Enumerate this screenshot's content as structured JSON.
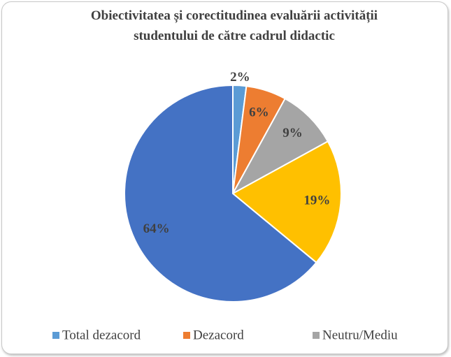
{
  "chart_data": {
    "type": "pie",
    "title": "Obiectivitatea și corectitudinea evaluării activității studentului de către cadrul didactic",
    "categories": [
      "Total dezacord",
      "Dezacord",
      "Neutru/Mediu",
      null,
      null
    ],
    "values": [
      2,
      6,
      9,
      19,
      64
    ],
    "value_labels": [
      "2%",
      "6%",
      "9%",
      "19%",
      "64%"
    ],
    "colors": [
      "#5b9bd5",
      "#ed7d31",
      "#a5a5a5",
      "#ffc000",
      "#4472c4"
    ],
    "legend": "bottom"
  }
}
